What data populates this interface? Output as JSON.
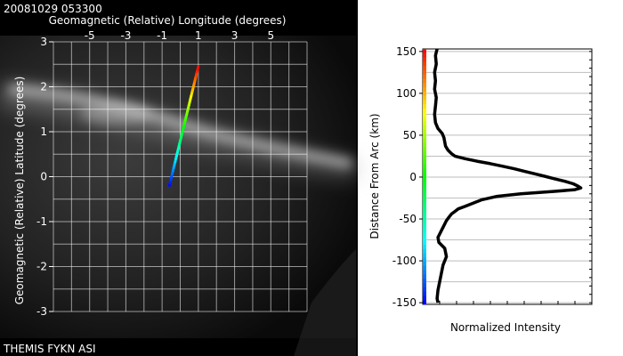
{
  "header": {
    "timestamp": "20081029 053300"
  },
  "footer": {
    "source_label": "THEMIS FYKN ASI"
  },
  "colors": {
    "sky_background": "#000000",
    "grid_line": "#ffffff",
    "aurora_arc": "#dcdcdc",
    "profile_line": "#000000",
    "profile_grid": "#bebebe"
  },
  "chart_data": [
    {
      "type": "image-overlay",
      "xlabel": "Geomagnetic (Relative) Longitude (degrees)",
      "ylabel": "Geomagnetic (Relative) Latitude (degrees)",
      "x_ticks": [
        "-5",
        "-3",
        "-1",
        "1",
        "3",
        "5"
      ],
      "x_tick_values": [
        -5,
        -3,
        -1,
        1,
        3,
        5
      ],
      "y_ticks": [
        "3",
        "2",
        "1",
        "0",
        "-1",
        "-2",
        "-3"
      ],
      "y_tick_values": [
        3,
        2,
        1,
        0,
        -1,
        -2,
        -3
      ],
      "xlim": [
        -7,
        7
      ],
      "ylim": [
        -3,
        3
      ],
      "grid": true,
      "scan_line": {
        "start": {
          "x": -0.6,
          "y": -0.2
        },
        "end": {
          "x": 1.0,
          "y": 2.45
        },
        "colormap": "rainbow: blue at start, red at end"
      }
    },
    {
      "type": "line",
      "xlabel": "Normalized Intensity",
      "ylabel": "Distance From Arc (km)",
      "y_ticks": [
        "150",
        "100",
        "50",
        "0",
        "-50",
        "-100",
        "-150"
      ],
      "y_tick_values": [
        150,
        100,
        50,
        0,
        -50,
        -100,
        -150
      ],
      "ylim": [
        -152,
        153
      ],
      "xlim": [
        0,
        1
      ],
      "grid": true,
      "series": [
        {
          "distance_km": [
            153,
            145,
            135,
            125,
            115,
            105,
            95,
            85,
            75,
            65,
            58,
            52,
            47,
            42,
            37,
            32,
            28,
            25,
            22,
            19,
            16,
            13,
            10,
            7,
            4,
            1,
            -2,
            -5,
            -8,
            -11,
            -13,
            -15,
            -17,
            -20,
            -23,
            -27,
            -31,
            -35,
            -38,
            -41,
            -44,
            -48,
            -52,
            -56,
            -60,
            -64,
            -68,
            -72,
            -78,
            -85,
            -95,
            -105,
            -115,
            -125,
            -135,
            -145,
            -150
          ],
          "intensity": [
            0.085,
            0.075,
            0.08,
            0.07,
            0.075,
            0.07,
            0.08,
            0.075,
            0.07,
            0.075,
            0.09,
            0.115,
            0.125,
            0.13,
            0.135,
            0.15,
            0.17,
            0.19,
            0.25,
            0.32,
            0.4,
            0.47,
            0.54,
            0.6,
            0.66,
            0.72,
            0.78,
            0.84,
            0.89,
            0.92,
            0.935,
            0.9,
            0.78,
            0.58,
            0.44,
            0.35,
            0.3,
            0.25,
            0.21,
            0.19,
            0.17,
            0.155,
            0.14,
            0.13,
            0.12,
            0.11,
            0.1,
            0.09,
            0.095,
            0.13,
            0.14,
            0.12,
            0.11,
            0.1,
            0.09,
            0.085,
            0.09
          ]
        }
      ],
      "color_bar": {
        "colormap": "rainbow: red at +150 km, blue at -150 km"
      }
    }
  ]
}
